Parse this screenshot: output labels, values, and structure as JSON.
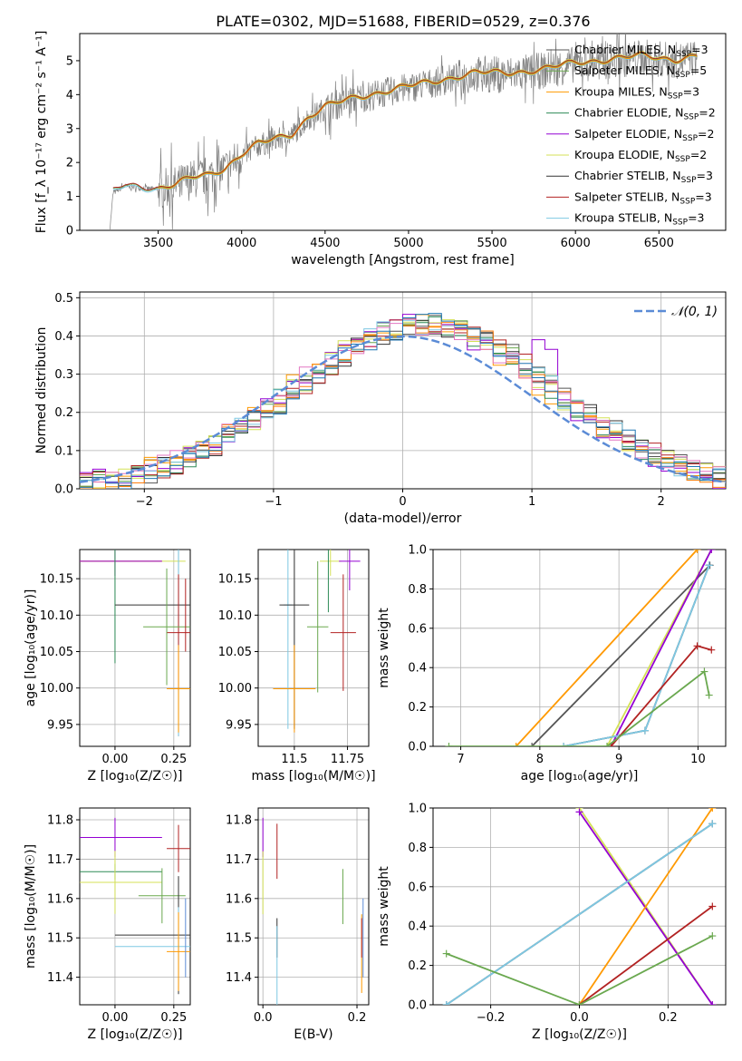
{
  "figure": {
    "title": "PLATE=0302, MJD=51688, FIBERID=0529, z=0.376"
  },
  "colors": {
    "data": "#808080",
    "Chabrier MILES": "#555555",
    "Salpeter MILES": "#6aa84f",
    "Kroupa MILES": "#ff9900",
    "Chabrier ELODIE": "#2e8b57",
    "Salpeter ELODIE": "#9400d3",
    "Kroupa ELODIE": "#d4e157",
    "Chabrier STELIB": "#333333",
    "Salpeter STELIB": "#b22222",
    "Kroupa STELIB": "#7ec8e3",
    "normal": "#5b8bd6",
    "hist_extra": [
      "#ff7f0e",
      "#e377c2",
      "#1f77b4"
    ]
  },
  "chart_data": [
    {
      "id": "spectrum",
      "type": "line",
      "xlabel": "wavelength [Angstrom, rest frame]",
      "ylabel": "Flux [f_λ 10⁻¹⁷ erg cm⁻² s⁻¹ A⁻¹]",
      "xlim": [
        3030,
        6900
      ],
      "ylim": [
        0,
        5.8
      ],
      "xticks": [
        3500,
        4000,
        4500,
        5000,
        5500,
        6000,
        6500
      ],
      "yticks": [
        0,
        1,
        2,
        3,
        4,
        5
      ],
      "legend_position": "top-right",
      "legend": [
        {
          "label": "Chabrier MILES, N",
          "sub": "SSP",
          "tail": "=3"
        },
        {
          "label": "Salpeter MILES, N",
          "sub": "SSP",
          "tail": "=5"
        },
        {
          "label": "Kroupa MILES, N",
          "sub": "SSP",
          "tail": "=3"
        },
        {
          "label": "Chabrier ELODIE, N",
          "sub": "SSP",
          "tail": "=2"
        },
        {
          "label": "Salpeter ELODIE, N",
          "sub": "SSP",
          "tail": "=2"
        },
        {
          "label": "Kroupa ELODIE, N",
          "sub": "SSP",
          "tail": "=2"
        },
        {
          "label": "Chabrier STELIB, N",
          "sub": "SSP",
          "tail": "=3"
        },
        {
          "label": "Salpeter STELIB, N",
          "sub": "SSP",
          "tail": "=3"
        },
        {
          "label": "Kroupa STELIB, N",
          "sub": "SSP",
          "tail": "=3"
        }
      ],
      "continuum_points": [
        [
          3210,
          0
        ],
        [
          3230,
          1.1
        ],
        [
          3300,
          1.3
        ],
        [
          3400,
          1.25
        ],
        [
          3500,
          1.2
        ],
        [
          3600,
          1.3
        ],
        [
          3700,
          1.5
        ],
        [
          3800,
          1.6
        ],
        [
          3900,
          1.8
        ],
        [
          4000,
          2.2
        ],
        [
          4100,
          2.5
        ],
        [
          4300,
          2.8
        ],
        [
          4400,
          3.3
        ],
        [
          4500,
          3.6
        ],
        [
          4700,
          3.9
        ],
        [
          4900,
          4.1
        ],
        [
          5000,
          4.2
        ],
        [
          5200,
          4.4
        ],
        [
          5400,
          4.6
        ],
        [
          5600,
          4.6
        ],
        [
          5800,
          4.7
        ],
        [
          6000,
          4.9
        ],
        [
          6200,
          5.0
        ],
        [
          6400,
          5.1
        ],
        [
          6600,
          5.0
        ],
        [
          6730,
          5.1
        ]
      ]
    },
    {
      "id": "residuals",
      "type": "histogram",
      "xlabel": "(data-model)/error",
      "ylabel": "Normed distribution",
      "xlim": [
        -2.5,
        2.5
      ],
      "ylim": [
        0,
        0.515
      ],
      "xticks": [
        -2,
        -1,
        0,
        1,
        2
      ],
      "yticks": [
        0.0,
        0.1,
        0.2,
        0.3,
        0.4,
        0.5
      ],
      "grid": true,
      "legend_position": "top-right",
      "legend": "𝒩(0, 1)",
      "bin_width": 0.1
    },
    {
      "id": "age_vs_Z",
      "type": "scatter",
      "xlabel": "Z [log₁₀(Z/Z☉)]",
      "ylabel": "age  [log₁₀(age/yr)]",
      "xlim": [
        -0.15,
        0.32
      ],
      "ylim": [
        9.92,
        10.19
      ],
      "xticks": [
        0.0,
        0.25
      ],
      "yticks": [
        9.95,
        10.0,
        10.05,
        10.1,
        10.15
      ],
      "grid": true,
      "points": [
        {
          "s": "Kroupa ELODIE",
          "x": 0.0,
          "y": 10.174,
          "xerr": 0.3,
          "yerr": 0.02
        },
        {
          "s": "Kroupa MILES",
          "x": 0.0,
          "y": 10.174,
          "xerr": 0.2,
          "yerr": 0.0
        },
        {
          "s": "Salpeter ELODIE",
          "x": 0.0,
          "y": 10.174,
          "xerr": 0.2,
          "yerr": 0.02
        },
        {
          "s": "Chabrier ELODIE",
          "x": 0.0,
          "y": 10.174,
          "xerr": 0.0,
          "yerr": 0.14
        },
        {
          "s": "Chabrier STELIB",
          "x": 0.27,
          "y": 10.114,
          "xerr": 0.27,
          "yerr": 0.18
        },
        {
          "s": "Kroupa STELIB",
          "x": 0.27,
          "y": 10.114,
          "xerr": 0.0,
          "yerr": 0.18
        },
        {
          "s": "Salpeter STELIB",
          "x": 0.27,
          "y": 10.076,
          "xerr": 0.05,
          "yerr": 0.08
        },
        {
          "s": "Salpeter MILES",
          "x": 0.22,
          "y": 10.084,
          "xerr": 0.1,
          "yerr": 0.08
        },
        {
          "s": "Kroupa MILES",
          "x": 0.27,
          "y": 9.999,
          "xerr": 0.05,
          "yerr": 0.06
        },
        {
          "s": "Salpeter STELIB",
          "x": 0.3,
          "y": 10.1,
          "xerr": 0.0,
          "yerr": 0.05
        }
      ]
    },
    {
      "id": "age_vs_mass",
      "type": "scatter",
      "xlabel": "mass [log₁₀(M/M☉)]",
      "ylabel": "",
      "xlim": [
        11.33,
        11.85
      ],
      "ylim": [
        9.92,
        10.19
      ],
      "xticks": [
        11.5,
        11.75
      ],
      "yticks": [
        9.95,
        10.0,
        10.05,
        10.1,
        10.15
      ],
      "grid": true,
      "points": [
        {
          "s": "Kroupa ELODIE",
          "x": 11.67,
          "y": 10.174,
          "xerr": 0.05,
          "yerr": 0.02
        },
        {
          "s": "Salpeter ELODIE",
          "x": 11.76,
          "y": 10.174,
          "xerr": 0.05,
          "yerr": 0.04
        },
        {
          "s": "Chabrier ELODIE",
          "x": 11.66,
          "y": 10.174,
          "xerr": 0.0,
          "yerr": 0.07
        },
        {
          "s": "Salpeter STELIB",
          "x": 11.73,
          "y": 10.076,
          "xerr": 0.06,
          "yerr": 0.08
        },
        {
          "s": "Kroupa STELIB",
          "x": 11.47,
          "y": 10.114,
          "xerr": 0.02,
          "yerr": 0.17
        },
        {
          "s": "Chabrier STELIB",
          "x": 11.5,
          "y": 10.114,
          "xerr": 0.07,
          "yerr": 0.17
        },
        {
          "s": "Kroupa MILES",
          "x": 11.5,
          "y": 9.999,
          "xerr": 0.1,
          "yerr": 0.06
        },
        {
          "s": "Salpeter MILES",
          "x": 11.61,
          "y": 10.084,
          "xerr": 0.05,
          "yerr": 0.09
        }
      ]
    },
    {
      "id": "weight_vs_age",
      "type": "line",
      "xlabel": "age  [log₁₀(age/yr)]",
      "ylabel": "mass weight",
      "xlim": [
        6.65,
        10.35
      ],
      "ylim": [
        0,
        1.0
      ],
      "xticks": [
        7,
        8,
        9,
        10
      ],
      "yticks": [
        0.0,
        0.2,
        0.4,
        0.6,
        0.8,
        1.0
      ],
      "grid": true,
      "series": [
        {
          "s": "Kroupa MILES",
          "x": [
            7.7,
            9.99
          ],
          "y": [
            0.0,
            1.0
          ]
        },
        {
          "s": "Chabrier MILES",
          "x": [
            7.9,
            10.15
          ],
          "y": [
            0.0,
            0.92
          ]
        },
        {
          "s": "Kroupa ELODIE",
          "x": [
            8.85,
            10.17
          ],
          "y": [
            0.0,
            1.0
          ]
        },
        {
          "s": "Salpeter ELODIE",
          "x": [
            8.9,
            10.17
          ],
          "y": [
            0.0,
            1.0
          ]
        },
        {
          "s": "Chabrier STELIB",
          "x": [
            8.3,
            9.33,
            10.14
          ],
          "y": [
            0.0,
            0.08,
            0.92
          ]
        },
        {
          "s": "Kroupa STELIB",
          "x": [
            8.3,
            9.33,
            10.14
          ],
          "y": [
            0.0,
            0.08,
            0.92
          ]
        },
        {
          "s": "Salpeter STELIB",
          "x": [
            8.9,
            9.99,
            10.17
          ],
          "y": [
            0.0,
            0.51,
            0.49
          ]
        },
        {
          "s": "Salpeter MILES",
          "x": [
            6.85,
            8.85,
            10.08,
            10.14
          ],
          "y": [
            0.0,
            0.0,
            0.38,
            0.26
          ]
        }
      ]
    },
    {
      "id": "mass_vs_Z",
      "type": "scatter",
      "xlabel": "Z [log₁₀(Z/Z☉)]",
      "ylabel": "mass [log₁₀(M/M☉)]",
      "xlim": [
        -0.15,
        0.32
      ],
      "ylim": [
        11.33,
        11.83
      ],
      "xticks": [
        0.0,
        0.25
      ],
      "yticks": [
        11.4,
        11.5,
        11.6,
        11.7,
        11.8
      ],
      "grid": true,
      "points": [
        {
          "s": "Salpeter ELODIE",
          "x": 0.0,
          "y": 11.755,
          "xerr": 0.2,
          "yerr": 0.05
        },
        {
          "s": "Salpeter STELIB",
          "x": 0.27,
          "y": 11.727,
          "xerr": 0.05,
          "yerr": 0.06
        },
        {
          "s": "Chabrier ELODIE",
          "x": 0.0,
          "y": 11.668,
          "xerr": 0.2,
          "yerr": 0.02
        },
        {
          "s": "Kroupa ELODIE",
          "x": 0.0,
          "y": 11.641,
          "xerr": 0.2,
          "yerr": 0.08
        },
        {
          "s": "Salpeter MILES",
          "x": 0.2,
          "y": 11.607,
          "xerr": 0.1,
          "yerr": 0.07
        },
        {
          "s": "Chabrier STELIB",
          "x": 0.27,
          "y": 11.507,
          "xerr": 0.27,
          "yerr": 0.15
        },
        {
          "s": "Kroupa STELIB",
          "x": 0.27,
          "y": 11.478,
          "xerr": 0.27,
          "yerr": 0.1
        },
        {
          "s": "Kroupa MILES",
          "x": 0.27,
          "y": 11.465,
          "xerr": 0.05,
          "yerr": 0.1
        },
        {
          "s": "normal",
          "x": 0.3,
          "y": 11.5,
          "xerr": 0.0,
          "yerr": 0.1
        }
      ]
    },
    {
      "id": "mass_vs_ebv",
      "type": "scatter",
      "xlabel": "E(B-V)",
      "ylabel": "",
      "xlim": [
        -0.01,
        0.225
      ],
      "ylim": [
        11.33,
        11.83
      ],
      "xticks": [
        0.0,
        0.2
      ],
      "yticks": [
        11.4,
        11.5,
        11.6,
        11.7,
        11.8
      ],
      "grid": true,
      "points": [
        {
          "s": "Salpeter ELODIE",
          "x": 0.0,
          "y": 11.755,
          "xerr": 0.0,
          "yerr": 0.05
        },
        {
          "s": "Kroupa ELODIE",
          "x": 0.0,
          "y": 11.64,
          "xerr": 0.0,
          "yerr": 0.08
        },
        {
          "s": "Salpeter STELIB",
          "x": 0.03,
          "y": 11.72,
          "xerr": 0.0,
          "yerr": 0.07
        },
        {
          "s": "Chabrier STELIB",
          "x": 0.03,
          "y": 11.5,
          "xerr": 0.0,
          "yerr": 0.05
        },
        {
          "s": "Kroupa STELIB",
          "x": 0.03,
          "y": 11.43,
          "xerr": 0.0,
          "yerr": 0.1
        },
        {
          "s": "Salpeter MILES",
          "x": 0.17,
          "y": 11.605,
          "xerr": 0.0,
          "yerr": 0.07
        },
        {
          "s": "Kroupa MILES",
          "x": 0.21,
          "y": 11.46,
          "xerr": 0.0,
          "yerr": 0.1
        },
        {
          "s": "normal",
          "x": 0.213,
          "y": 11.5,
          "xerr": 0.0,
          "yerr": 0.1
        },
        {
          "s": "Salpeter STELIB",
          "x": 0.21,
          "y": 11.5,
          "xerr": 0.0,
          "yerr": 0.05
        }
      ]
    },
    {
      "id": "weight_vs_Z",
      "type": "line",
      "xlabel": "Z [log₁₀(Z/Z☉)]",
      "ylabel": "mass weight",
      "xlim": [
        -0.33,
        0.33
      ],
      "ylim": [
        0,
        1.0
      ],
      "xticks": [
        -0.2,
        0.0,
        0.2
      ],
      "yticks": [
        0.0,
        0.2,
        0.4,
        0.6,
        0.8,
        1.0
      ],
      "grid": true,
      "series": [
        {
          "s": "Kroupa ELODIE",
          "x": [
            0.0,
            0.3
          ],
          "y": [
            1.0,
            0.0
          ]
        },
        {
          "s": "Salpeter ELODIE",
          "x": [
            0.0,
            0.3
          ],
          "y": [
            0.98,
            0.0
          ]
        },
        {
          "s": "Kroupa MILES",
          "x": [
            0.0,
            0.3
          ],
          "y": [
            0.0,
            1.0
          ]
        },
        {
          "s": "Chabrier STELIB",
          "x": [
            -0.3,
            0.3
          ],
          "y": [
            0.0,
            0.92
          ]
        },
        {
          "s": "Kroupa STELIB",
          "x": [
            -0.3,
            0.3
          ],
          "y": [
            0.0,
            0.92
          ]
        },
        {
          "s": "Salpeter STELIB",
          "x": [
            0.0,
            0.3
          ],
          "y": [
            0.0,
            0.5
          ]
        },
        {
          "s": "Salpeter MILES",
          "x": [
            -0.3,
            0.0,
            0.3
          ],
          "y": [
            0.26,
            0.0,
            0.35
          ]
        }
      ]
    }
  ]
}
